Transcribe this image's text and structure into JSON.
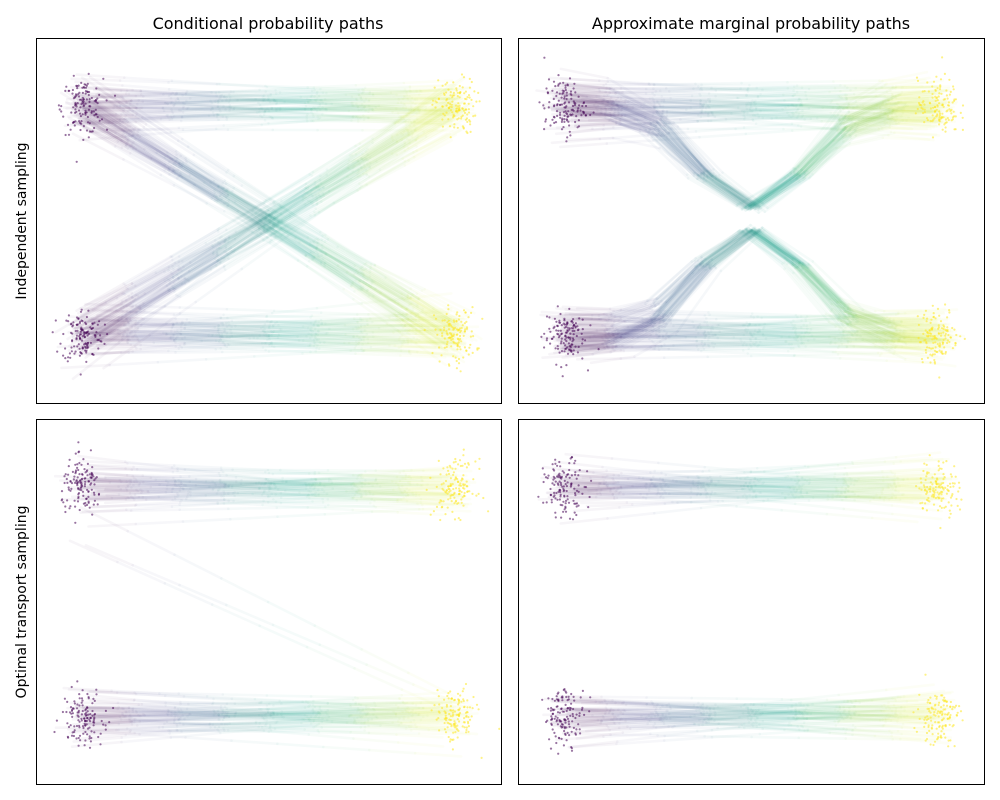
{
  "figure": {
    "col_titles": [
      "Conditional probability paths",
      "Approximate marginal probability paths"
    ],
    "row_labels": [
      "Independent sampling",
      "Optimal transport sampling"
    ]
  },
  "chart_data": [
    {
      "type": "line",
      "row_label": "Independent sampling",
      "title": "Conditional probability paths",
      "xlabel": "",
      "ylabel": "",
      "xlim": [
        0,
        1
      ],
      "ylim": [
        -4,
        4
      ],
      "axes": "hidden ticks",
      "colormap": "viridis",
      "sources": [
        {
          "name": "",
          "x": 0.1,
          "y": 2.5
        },
        {
          "name": "",
          "x": 0.1,
          "y": -2.5
        }
      ],
      "targets": [
        {
          "name": "",
          "x": 0.9,
          "y": 2.5
        },
        {
          "name": "",
          "x": 0.9,
          "y": -2.5
        }
      ],
      "path_groups": [
        {
          "from": [
            0.1,
            2.5
          ],
          "to": [
            0.9,
            2.5
          ],
          "shape": "straight"
        },
        {
          "from": [
            0.1,
            2.5
          ],
          "to": [
            0.9,
            -2.5
          ],
          "shape": "straight"
        },
        {
          "from": [
            0.1,
            -2.5
          ],
          "to": [
            0.9,
            2.5
          ],
          "shape": "straight"
        },
        {
          "from": [
            0.1,
            -2.5
          ],
          "to": [
            0.9,
            -2.5
          ],
          "shape": "straight"
        }
      ]
    },
    {
      "type": "line",
      "row_label": "Independent sampling",
      "title": "Approximate marginal probability paths",
      "xlabel": "",
      "ylabel": "",
      "xlim": [
        0,
        1
      ],
      "ylim": [
        -4,
        4
      ],
      "axes": "hidden ticks",
      "colormap": "viridis",
      "sources": [
        {
          "name": "",
          "x": 0.1,
          "y": 2.5
        },
        {
          "name": "",
          "x": 0.1,
          "y": -2.5
        }
      ],
      "targets": [
        {
          "name": "",
          "x": 0.9,
          "y": 2.5
        },
        {
          "name": "",
          "x": 0.9,
          "y": -2.5
        }
      ],
      "path_groups": [
        {
          "from": [
            0.1,
            2.5
          ],
          "to": [
            0.9,
            2.5
          ],
          "shape": "straight"
        },
        {
          "from": [
            0.1,
            2.5
          ],
          "to": [
            0.9,
            2.5
          ],
          "shape": "dip",
          "turn_y": 0.3
        },
        {
          "from": [
            0.1,
            -2.5
          ],
          "to": [
            0.9,
            -2.5
          ],
          "shape": "straight"
        },
        {
          "from": [
            0.1,
            -2.5
          ],
          "to": [
            0.9,
            -2.5
          ],
          "shape": "bump",
          "turn_y": -0.2
        }
      ]
    },
    {
      "type": "line",
      "row_label": "Optimal transport sampling",
      "title": "",
      "xlabel": "",
      "ylabel": "",
      "xlim": [
        0,
        1
      ],
      "ylim": [
        -4,
        4
      ],
      "axes": "hidden ticks",
      "colormap": "viridis",
      "sources": [
        {
          "name": "",
          "x": 0.1,
          "y": 2.5
        },
        {
          "name": "",
          "x": 0.1,
          "y": -2.5
        }
      ],
      "targets": [
        {
          "name": "",
          "x": 0.9,
          "y": 2.5
        },
        {
          "name": "",
          "x": 0.9,
          "y": -2.5
        }
      ],
      "path_groups": [
        {
          "from": [
            0.1,
            2.5
          ],
          "to": [
            0.9,
            2.5
          ],
          "shape": "straight"
        },
        {
          "from": [
            0.1,
            -2.5
          ],
          "to": [
            0.9,
            -2.5
          ],
          "shape": "straight"
        },
        {
          "from": [
            0.1,
            2.0
          ],
          "to": [
            0.9,
            -2.1
          ],
          "shape": "straight",
          "note_count": 3
        }
      ]
    },
    {
      "type": "line",
      "row_label": "Optimal transport sampling",
      "title": "",
      "xlabel": "",
      "ylabel": "",
      "xlim": [
        0,
        1
      ],
      "ylim": [
        -4,
        4
      ],
      "axes": "hidden ticks",
      "colormap": "viridis",
      "sources": [
        {
          "name": "",
          "x": 0.1,
          "y": 2.5
        },
        {
          "name": "",
          "x": 0.1,
          "y": -2.5
        }
      ],
      "targets": [
        {
          "name": "",
          "x": 0.9,
          "y": 2.5
        },
        {
          "name": "",
          "x": 0.9,
          "y": -2.5
        }
      ],
      "path_groups": [
        {
          "from": [
            0.1,
            2.5
          ],
          "to": [
            0.9,
            2.5
          ],
          "shape": "straight"
        },
        {
          "from": [
            0.1,
            -2.5
          ],
          "to": [
            0.9,
            -2.5
          ],
          "shape": "straight"
        }
      ]
    }
  ]
}
